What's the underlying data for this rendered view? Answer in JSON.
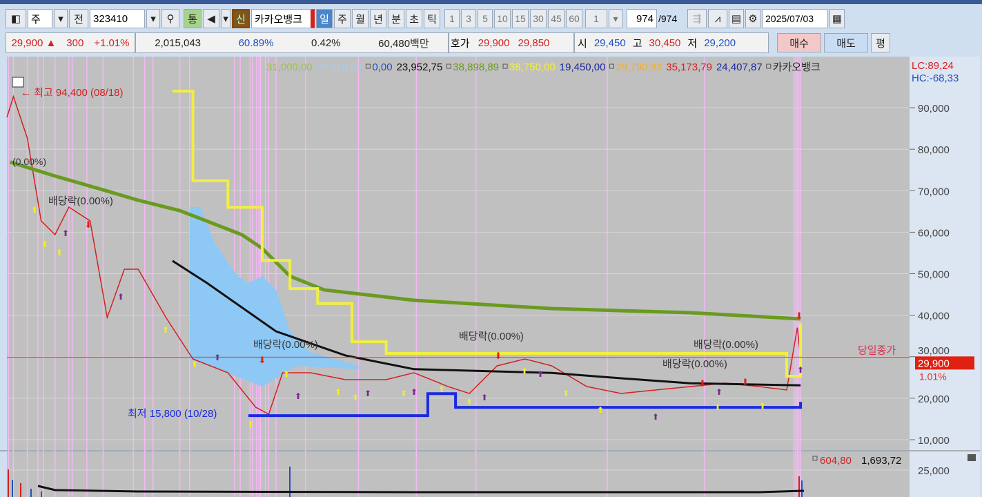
{
  "toolbar": {
    "market": "주",
    "prev": "전",
    "code": "323410",
    "tong": "통",
    "sin": "신",
    "stock_name": "카카오뱅크",
    "periods": [
      "일",
      "주",
      "월",
      "년",
      "분",
      "초",
      "틱"
    ],
    "active_period": "일",
    "intervals": [
      "1",
      "3",
      "5",
      "10",
      "15",
      "30",
      "45",
      "60"
    ],
    "interval_value": "1",
    "count": "974",
    "count_total": "/974",
    "date": "2025/07/03"
  },
  "quote": {
    "price": "29,900",
    "up_icon": "▲",
    "change": "300",
    "change_pct": "+1.01%",
    "volume": "2,015,043",
    "vol_ratio": "60.89%",
    "turnover": "0.42%",
    "amount": "60,480백만",
    "bid_label": "호가",
    "ask": "29,900",
    "bid": "29,850",
    "open_label": "시",
    "open": "29,450",
    "high_label": "고",
    "high": "30,450",
    "low_label": "저",
    "low": "29,200",
    "buy": "매수",
    "sell": "매도",
    "eval": "평"
  },
  "legend": [
    {
      "text": "31,000,00",
      "color": "#9dc43a"
    },
    {
      "text": "29,110,00",
      "color": "#a8cce8"
    },
    {
      "text": "0,00",
      "color": "#2050c0",
      "box": true
    },
    {
      "text": "23,952,75",
      "color": "#111"
    },
    {
      "text": "38,898,89",
      "color": "#6a9a20",
      "box": true
    },
    {
      "text": "38,750,00",
      "color": "#f0f040",
      "box": true
    },
    {
      "text": "19,450,00",
      "color": "#1a2aa0"
    },
    {
      "text": "29,790,83",
      "color": "#f0b030",
      "box": true
    },
    {
      "text": "35,173,79",
      "color": "#d42020"
    },
    {
      "text": "24,407,87",
      "color": "#1a2aa0"
    },
    {
      "text": "카카오뱅크",
      "color": "#222",
      "box": true
    }
  ],
  "lc": "LC:89,24",
  "hc": "HC:-68,33",
  "chart_data": {
    "type": "line",
    "yticks": [
      "90,000",
      "80,000",
      "70,000",
      "60,000",
      "50,000",
      "40,000",
      "30,000",
      "20,000",
      "10,000"
    ],
    "ylim": [
      10000,
      90000
    ],
    "bars": 974,
    "annotations": {
      "high": "최고 94,400 (08/18)",
      "low": "최저 15,800 (10/28)",
      "ex_div": "배당락(0.00%)",
      "pct": "(0.00%)",
      "close_label": "당일종가",
      "close_value": "29,900",
      "close_pct": "1.01%"
    },
    "series": [
      {
        "color": "#d42020",
        "points": [
          [
            0,
            87680
          ],
          [
            8,
            92670
          ],
          [
            25,
            82690
          ],
          [
            42,
            62730
          ],
          [
            59,
            59400
          ],
          [
            76,
            66050
          ],
          [
            102,
            62730
          ],
          [
            123,
            39440
          ],
          [
            144,
            51080
          ],
          [
            161,
            51080
          ],
          [
            195,
            39440
          ],
          [
            228,
            29460
          ],
          [
            271,
            26130
          ],
          [
            305,
            17820
          ],
          [
            321,
            16150
          ],
          [
            338,
            26130
          ],
          [
            372,
            26130
          ],
          [
            415,
            24470
          ],
          [
            465,
            24470
          ],
          [
            499,
            26130
          ],
          [
            541,
            22800
          ],
          [
            567,
            21140
          ],
          [
            601,
            27800
          ],
          [
            635,
            29460
          ],
          [
            668,
            27800
          ],
          [
            711,
            22800
          ],
          [
            753,
            21140
          ],
          [
            795,
            21980
          ],
          [
            838,
            22800
          ],
          [
            880,
            23640
          ],
          [
            922,
            22800
          ],
          [
            956,
            21980
          ],
          [
            969,
            37000
          ],
          [
            973,
            29900
          ]
        ]
      },
      {
        "color": "#6a9a20",
        "width": 5,
        "points": [
          [
            4,
            76900
          ],
          [
            59,
            73540
          ],
          [
            118,
            70200
          ],
          [
            161,
            67700
          ],
          [
            212,
            65200
          ],
          [
            245,
            62700
          ],
          [
            288,
            59400
          ],
          [
            313,
            56100
          ],
          [
            347,
            49400
          ],
          [
            389,
            46100
          ],
          [
            499,
            43600
          ],
          [
            668,
            41600
          ],
          [
            838,
            40600
          ],
          [
            973,
            39100
          ]
        ]
      },
      {
        "color": "#f0f040",
        "width": 4,
        "step": true,
        "points": [
          [
            203,
            94000
          ],
          [
            228,
            72400
          ],
          [
            271,
            66000
          ],
          [
            313,
            53200
          ],
          [
            347,
            46400
          ],
          [
            381,
            42800
          ],
          [
            423,
            33600
          ],
          [
            465,
            30800
          ],
          [
            871,
            30800
          ],
          [
            956,
            25300
          ],
          [
            973,
            38000
          ]
        ]
      },
      {
        "color": "#1a2ae0",
        "width": 4,
        "step": true,
        "points": [
          [
            296,
            15800
          ],
          [
            508,
            15800
          ],
          [
            516,
            21100
          ],
          [
            550,
            17800
          ],
          [
            956,
            17800
          ],
          [
            973,
            19100
          ]
        ]
      },
      {
        "color": "#111",
        "width": 3,
        "points": [
          [
            203,
            53100
          ],
          [
            245,
            47800
          ],
          [
            330,
            36100
          ],
          [
            415,
            30300
          ],
          [
            499,
            27000
          ],
          [
            668,
            26100
          ],
          [
            753,
            24800
          ],
          [
            838,
            23600
          ],
          [
            973,
            23100
          ]
        ]
      }
    ],
    "cloud": {
      "upper": [
        [
          224,
          66050
        ],
        [
          237,
          66050
        ],
        [
          254,
          57740
        ],
        [
          271,
          52750
        ],
        [
          283,
          49420
        ],
        [
          296,
          47760
        ],
        [
          313,
          49420
        ],
        [
          330,
          46090
        ],
        [
          347,
          36110
        ],
        [
          372,
          31120
        ],
        [
          431,
          27800
        ]
      ],
      "lower": [
        [
          431,
          26960
        ],
        [
          355,
          27800
        ],
        [
          313,
          22800
        ],
        [
          271,
          26130
        ],
        [
          224,
          29460
        ]
      ]
    },
    "event_markers": [
      2,
      8,
      25,
      38,
      45,
      59,
      76,
      80,
      98,
      118,
      155,
      169,
      179,
      212,
      224,
      279,
      286,
      298,
      301,
      306,
      309,
      311,
      317,
      321,
      330,
      366,
      431,
      502,
      575,
      736,
      855,
      965,
      967,
      969,
      971,
      973
    ],
    "volume": {
      "ytick": "25,000",
      "legend": [
        "604,80",
        "1,693,72"
      ],
      "legend_colors": [
        "#d42020",
        "#111"
      ]
    }
  }
}
